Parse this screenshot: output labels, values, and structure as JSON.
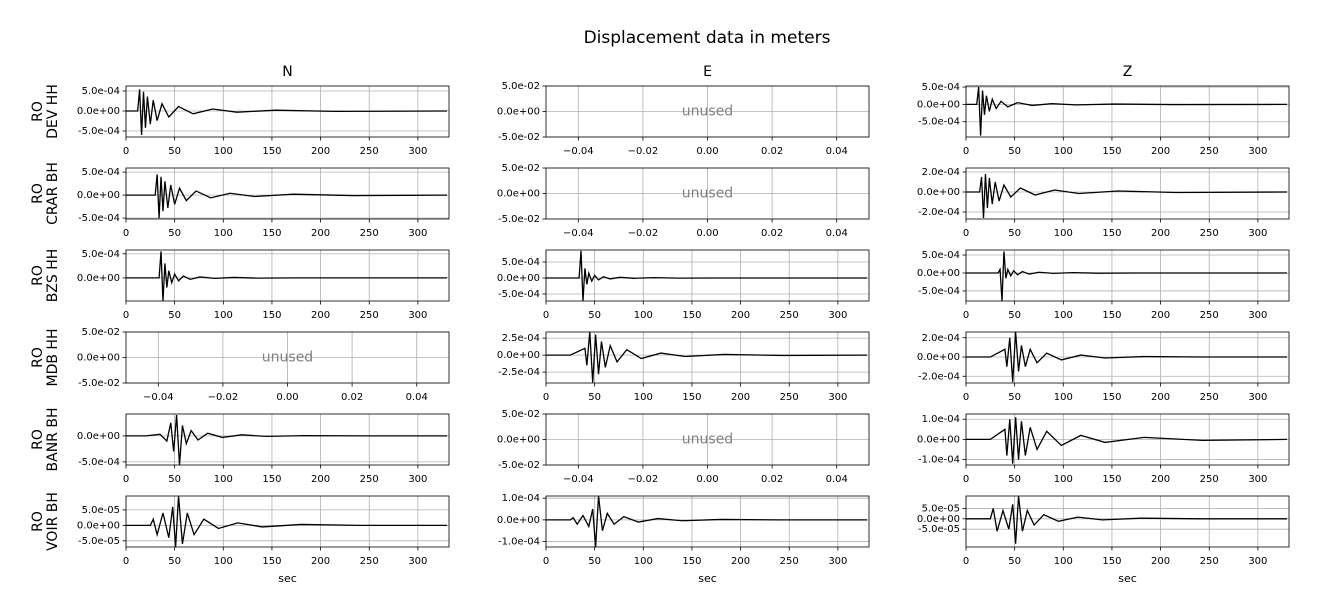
{
  "title": "Displacement data in meters",
  "chart_data": [
    {
      "type": "line",
      "title": "N",
      "ylabel": [
        "RO",
        "DEV HH"
      ],
      "xlim": [
        0,
        332
      ],
      "xticks": [
        0,
        50,
        100,
        150,
        200,
        250,
        300
      ],
      "ylim": [
        -0.00065,
        0.000625
      ],
      "yticks": [
        {
          "value": 0.0005,
          "label": "5.0e-04"
        },
        {
          "value": 0,
          "label": "0.0e+00"
        },
        {
          "value": -0.0005,
          "label": "-5.0e-04"
        }
      ],
      "grid": true,
      "color": "#000000",
      "x": [
        0,
        12,
        14,
        16,
        18,
        20,
        22,
        25,
        28,
        32,
        37,
        44,
        54,
        69,
        89,
        114,
        154,
        214,
        330
      ],
      "values": [
        0,
        0,
        0.00054,
        -0.0006,
        0.00048,
        -0.00042,
        0.00036,
        -0.00033,
        0.00027,
        -0.00024,
        0.00018,
        -0.00015,
        0.00011,
        -7e-05,
        5e-05,
        -3e-05,
        2e-05,
        -1e-05,
        0
      ]
    },
    {
      "type": "unused",
      "title": "E",
      "annotation": "unused",
      "xlim": [
        -0.05,
        0.05
      ],
      "xticks": [
        {
          "value": -0.04,
          "label": "−0.04"
        },
        {
          "value": -0.02,
          "label": "−0.02"
        },
        {
          "value": 0,
          "label": "0.00"
        },
        {
          "value": 0.02,
          "label": "0.02"
        },
        {
          "value": 0.04,
          "label": "0.04"
        }
      ],
      "ylim": [
        -0.05,
        0.05
      ],
      "yticks": [
        {
          "value": 0.05,
          "label": "5.0e-02"
        },
        {
          "value": 0,
          "label": "0.0e+00"
        },
        {
          "value": -0.05,
          "label": "-5.0e-02"
        }
      ],
      "grid": true
    },
    {
      "type": "line",
      "title": "Z",
      "xlim": [
        0,
        332
      ],
      "xticks": [
        0,
        50,
        100,
        150,
        200,
        250,
        300
      ],
      "ylim": [
        -0.00094,
        0.00053
      ],
      "yticks": [
        {
          "value": 0.0005,
          "label": "5.0e-04"
        },
        {
          "value": 0,
          "label": "0.0e+00"
        },
        {
          "value": -0.0005,
          "label": "-5.0e-04"
        }
      ],
      "grid": true,
      "color": "#000000",
      "x": [
        0,
        11,
        13,
        15,
        17,
        19,
        21,
        24,
        27,
        31,
        36,
        43,
        53,
        68,
        88,
        113,
        153,
        213,
        330
      ],
      "values": [
        0,
        0,
        0.0005,
        -0.0009,
        0.0004,
        -0.0003,
        0.00025,
        -0.0002,
        0.00015,
        -0.00012,
        9e-05,
        -7e-05,
        5e-05,
        -3e-05,
        2e-05,
        -1.5e-05,
        1e-05,
        -5e-06,
        0
      ]
    },
    {
      "type": "line",
      "ylabel": [
        "RO",
        "CRAR BH"
      ],
      "xlim": [
        0,
        332
      ],
      "xticks": [
        0,
        50,
        100,
        150,
        200,
        250,
        300
      ],
      "ylim": [
        -0.00052,
        0.00059
      ],
      "yticks": [
        {
          "value": 0.0005,
          "label": "5.0e-04"
        },
        {
          "value": 0,
          "label": "0.0e+00"
        },
        {
          "value": -0.0005,
          "label": "-5.0e-04"
        }
      ],
      "grid": true,
      "color": "#000000",
      "x": [
        0,
        30,
        32,
        34,
        36,
        38,
        40,
        43,
        46,
        50,
        55,
        62,
        72,
        87,
        107,
        132,
        172,
        232,
        330
      ],
      "values": [
        0,
        0,
        0.00045,
        -0.0005,
        0.0004,
        -0.00035,
        0.0003,
        -0.00028,
        0.00022,
        -0.0002,
        0.00015,
        -0.00012,
        9e-05,
        -6e-05,
        4e-05,
        -3e-05,
        2e-05,
        -1e-05,
        0
      ]
    },
    {
      "type": "unused",
      "annotation": "unused",
      "xlim": [
        -0.05,
        0.05
      ],
      "xticks": [
        {
          "value": -0.04,
          "label": "−0.04"
        },
        {
          "value": -0.02,
          "label": "−0.02"
        },
        {
          "value": 0,
          "label": "0.00"
        },
        {
          "value": 0.02,
          "label": "0.02"
        },
        {
          "value": 0.04,
          "label": "0.04"
        }
      ],
      "ylim": [
        -0.05,
        0.05
      ],
      "yticks": [
        {
          "value": 0.05,
          "label": "5.0e-02"
        },
        {
          "value": 0,
          "label": "0.0e+00"
        },
        {
          "value": -0.05,
          "label": "-5.0e-02"
        }
      ],
      "grid": true
    },
    {
      "type": "line",
      "xlim": [
        0,
        332
      ],
      "xticks": [
        0,
        50,
        100,
        150,
        200,
        250,
        300
      ],
      "ylim": [
        -0.00027,
        0.00024
      ],
      "yticks": [
        {
          "value": 0.0002,
          "label": "2.0e-04"
        },
        {
          "value": 0,
          "label": "0.0e+00"
        },
        {
          "value": -0.0002,
          "label": "-2.0e-04"
        }
      ],
      "grid": true,
      "color": "#000000",
      "x": [
        0,
        14,
        16,
        18,
        20,
        22,
        24,
        27,
        30,
        34,
        39,
        46,
        56,
        71,
        91,
        116,
        156,
        216,
        330
      ],
      "values": [
        0,
        0,
        0.00015,
        -0.00026,
        0.00018,
        -0.00016,
        0.00014,
        -0.00012,
        0.0001,
        -9e-05,
        7e-05,
        -5e-05,
        4e-05,
        -3e-05,
        2e-05,
        -1.5e-05,
        1e-05,
        -5e-06,
        0
      ]
    },
    {
      "type": "line",
      "ylabel": [
        "RO",
        "BZS HH"
      ],
      "xlim": [
        0,
        332
      ],
      "xticks": [
        0,
        50,
        100,
        150,
        200,
        250,
        300
      ],
      "ylim": [
        -0.00048,
        0.00058
      ],
      "yticks": [
        {
          "value": 0.0005,
          "label": "5.0e-04"
        },
        {
          "value": 0,
          "label": "0.0e+00"
        }
      ],
      "grid": true,
      "color": "#000000",
      "x": [
        0,
        34,
        36,
        38,
        40,
        42,
        44,
        47,
        50,
        54,
        59,
        66,
        76,
        91,
        111,
        136,
        176,
        236,
        330
      ],
      "values": [
        0,
        0,
        0.00055,
        -0.00048,
        0.0003,
        -0.0002,
        0.00015,
        -0.0001,
        8e-05,
        -6e-05,
        4e-05,
        -3e-05,
        2e-05,
        -1e-05,
        1e-05,
        -5e-06,
        0,
        0,
        0
      ]
    },
    {
      "type": "line",
      "xlim": [
        0,
        332
      ],
      "xticks": [
        0,
        50,
        100,
        150,
        200,
        250,
        300
      ],
      "ylim": [
        -0.00072,
        0.000875
      ],
      "yticks": [
        {
          "value": 0.0005,
          "label": "5.0e-04"
        },
        {
          "value": 0,
          "label": "0.0e+00"
        },
        {
          "value": -0.0005,
          "label": "-5.0e-04"
        }
      ],
      "grid": true,
      "color": "#000000",
      "x": [
        0,
        34,
        36,
        38,
        40,
        42,
        44,
        47,
        50,
        54,
        59,
        66,
        76,
        91,
        111,
        136,
        176,
        236,
        330
      ],
      "values": [
        0,
        0,
        0.00085,
        -0.00072,
        0.0003,
        -0.0002,
        0.00015,
        -0.0001,
        8e-05,
        -6e-05,
        4e-05,
        -3e-05,
        2e-05,
        -1e-05,
        1e-05,
        -5e-06,
        0,
        0,
        0
      ]
    },
    {
      "type": "line",
      "xlim": [
        0,
        332
      ],
      "xticks": [
        0,
        50,
        100,
        150,
        200,
        250,
        300
      ],
      "ylim": [
        -0.00078,
        0.00064
      ],
      "yticks": [
        {
          "value": 0.0005,
          "label": "5.0e-04"
        },
        {
          "value": 0,
          "label": "0.0e+00"
        },
        {
          "value": -0.0005,
          "label": "-5.0e-04"
        }
      ],
      "grid": true,
      "color": "#000000",
      "x": [
        0,
        33,
        35,
        37,
        39,
        41,
        43,
        46,
        49,
        53,
        58,
        65,
        75,
        90,
        110,
        135,
        175,
        235,
        330
      ],
      "values": [
        0,
        0,
        0.0001,
        -0.00078,
        0.0006,
        -0.00015,
        0.0001,
        -8e-05,
        6e-05,
        -5e-05,
        4e-05,
        -3e-05,
        2e-05,
        -1e-05,
        1e-05,
        -5e-06,
        0,
        0,
        0
      ]
    },
    {
      "type": "unused",
      "ylabel": [
        "RO",
        "MDB HH"
      ],
      "annotation": "unused",
      "xlim": [
        -0.05,
        0.05
      ],
      "xticks": [
        {
          "value": -0.04,
          "label": "−0.04"
        },
        {
          "value": -0.02,
          "label": "−0.02"
        },
        {
          "value": 0,
          "label": "0.00"
        },
        {
          "value": 0.02,
          "label": "0.02"
        },
        {
          "value": 0.04,
          "label": "0.04"
        }
      ],
      "ylim": [
        -0.05,
        0.05
      ],
      "yticks": [
        {
          "value": 0.05,
          "label": "5.0e-02"
        },
        {
          "value": 0,
          "label": "0.0e+00"
        },
        {
          "value": -0.05,
          "label": "-5.0e-02"
        }
      ],
      "grid": true
    },
    {
      "type": "line",
      "xlim": [
        0,
        332
      ],
      "xticks": [
        0,
        50,
        100,
        150,
        200,
        250,
        300
      ],
      "ylim": [
        -0.00041,
        0.00034
      ],
      "yticks": [
        {
          "value": 0.00025,
          "label": "2.5e-04"
        },
        {
          "value": 0,
          "label": "0.0e+00"
        },
        {
          "value": -0.00025,
          "label": "-2.5e-04"
        }
      ],
      "grid": true,
      "color": "#000000",
      "x": [
        0,
        25,
        40,
        42,
        45,
        48,
        51,
        54,
        57,
        61,
        66,
        73,
        83,
        98,
        118,
        143,
        183,
        243,
        330
      ],
      "values": [
        0,
        0,
        0.0001,
        -0.00015,
        0.00034,
        -0.0004,
        0.0003,
        -0.00028,
        0.0002,
        -0.00018,
        0.00014,
        -0.0001,
        8e-05,
        -5e-05,
        3e-05,
        -2e-05,
        1e-05,
        -5e-06,
        0
      ]
    },
    {
      "type": "line",
      "xlim": [
        0,
        332
      ],
      "xticks": [
        0,
        50,
        100,
        150,
        200,
        250,
        300
      ],
      "ylim": [
        -0.00027,
        0.00026
      ],
      "yticks": [
        {
          "value": 0.0002,
          "label": "2.0e-04"
        },
        {
          "value": 0,
          "label": "0.0e+00"
        },
        {
          "value": -0.0002,
          "label": "-2.0e-04"
        }
      ],
      "grid": true,
      "color": "#000000",
      "x": [
        0,
        25,
        40,
        42,
        45,
        48,
        51,
        54,
        57,
        61,
        66,
        73,
        83,
        98,
        118,
        143,
        183,
        243,
        330
      ],
      "values": [
        0,
        0,
        8e-05,
        -0.0001,
        0.0002,
        -0.00026,
        0.00026,
        -0.00015,
        0.00012,
        -0.0001,
        8e-05,
        -6e-05,
        4e-05,
        -3e-05,
        2e-05,
        -1e-05,
        5e-06,
        0,
        0
      ]
    },
    {
      "type": "line",
      "ylabel": [
        "RO",
        "BANR BH"
      ],
      "xlim": [
        0,
        332
      ],
      "xticks": [
        0,
        50,
        100,
        150,
        200,
        250,
        300
      ],
      "ylim": [
        -0.00056,
        0.00042
      ],
      "yticks": [
        {
          "value": 0,
          "label": "0.0e+00"
        },
        {
          "value": -0.0005,
          "label": "-5.0e-04"
        }
      ],
      "grid": true,
      "color": "#000000",
      "x": [
        0,
        20,
        35,
        42,
        46,
        49,
        52,
        55,
        58,
        62,
        67,
        74,
        84,
        99,
        119,
        144,
        184,
        244,
        330
      ],
      "values": [
        0,
        0,
        3e-05,
        -0.0001,
        0.00025,
        -0.0003,
        0.0004,
        -0.00056,
        0.0002,
        -0.00015,
        0.0001,
        -8e-05,
        5e-05,
        -3e-05,
        2e-05,
        -1e-05,
        5e-06,
        0,
        0
      ]
    },
    {
      "type": "unused",
      "annotation": "unused",
      "xlim": [
        -0.05,
        0.05
      ],
      "xticks": [
        {
          "value": -0.04,
          "label": "−0.04"
        },
        {
          "value": -0.02,
          "label": "−0.02"
        },
        {
          "value": 0,
          "label": "0.00"
        },
        {
          "value": 0.02,
          "label": "0.02"
        },
        {
          "value": 0.04,
          "label": "0.04"
        }
      ],
      "ylim": [
        -0.05,
        0.05
      ],
      "yticks": [
        {
          "value": 0.05,
          "label": "5.0e-02"
        },
        {
          "value": 0,
          "label": "0.0e+00"
        },
        {
          "value": -0.05,
          "label": "-5.0e-02"
        }
      ],
      "grid": true
    },
    {
      "type": "line",
      "xlim": [
        0,
        332
      ],
      "xticks": [
        0,
        50,
        100,
        150,
        200,
        250,
        300
      ],
      "ylim": [
        -0.000127,
        0.000126
      ],
      "yticks": [
        {
          "value": 0.0001,
          "label": "1.0e-04"
        },
        {
          "value": 0,
          "label": "0.0e+00"
        },
        {
          "value": -0.0001,
          "label": "-1.0e-04"
        }
      ],
      "grid": true,
      "color": "#000000",
      "x": [
        0,
        25,
        40,
        42,
        45,
        48,
        51,
        54,
        57,
        61,
        66,
        73,
        83,
        98,
        118,
        143,
        183,
        243,
        330
      ],
      "values": [
        0,
        0,
        5e-05,
        -8e-05,
        0.0001,
        -0.00012,
        0.00011,
        -0.0001,
        9e-05,
        -8e-05,
        6e-05,
        -5e-05,
        4e-05,
        -3e-05,
        2e-05,
        -1.5e-05,
        1e-05,
        -5e-06,
        0
      ]
    },
    {
      "type": "line",
      "ylabel": [
        "RO",
        "VOIR BH"
      ],
      "xlabel": "sec",
      "xlim": [
        0,
        332
      ],
      "xticks": [
        0,
        50,
        100,
        150,
        200,
        250,
        300
      ],
      "ylim": [
        -7e-05,
        9.5e-05
      ],
      "yticks": [
        {
          "value": 5e-05,
          "label": "5.0e-05"
        },
        {
          "value": 0,
          "label": "0.0e+00"
        },
        {
          "value": -5e-05,
          "label": "-5.0e-05"
        }
      ],
      "grid": true,
      "color": "#000000",
      "x": [
        0,
        25,
        28,
        32,
        38,
        44,
        48,
        51,
        54,
        58,
        63,
        70,
        80,
        95,
        115,
        140,
        180,
        240,
        330
      ],
      "values": [
        0,
        0,
        2e-05,
        -3e-05,
        4e-05,
        -4e-05,
        6e-05,
        -7e-05,
        9.5e-05,
        -6e-05,
        4e-05,
        -3e-05,
        2e-05,
        -1e-05,
        8e-06,
        -5e-06,
        3e-06,
        0,
        0
      ]
    },
    {
      "type": "line",
      "xlabel": "sec",
      "xlim": [
        0,
        332
      ],
      "xticks": [
        0,
        50,
        100,
        150,
        200,
        250,
        300
      ],
      "ylim": [
        -0.000125,
        0.00011
      ],
      "yticks": [
        {
          "value": 0.0001,
          "label": "1.0e-04"
        },
        {
          "value": 0,
          "label": "0.0e+00"
        },
        {
          "value": -0.0001,
          "label": "-1.0e-04"
        }
      ],
      "grid": true,
      "color": "#000000",
      "x": [
        0,
        25,
        28,
        32,
        38,
        44,
        48,
        51,
        54,
        58,
        63,
        70,
        80,
        95,
        115,
        140,
        180,
        240,
        330
      ],
      "values": [
        0,
        0,
        1e-05,
        -2e-05,
        2e-05,
        -3e-05,
        5e-05,
        -0.000125,
        0.00011,
        -5e-05,
        3e-05,
        -2e-05,
        1.5e-05,
        -1e-05,
        6e-06,
        -4e-06,
        2e-06,
        0,
        0
      ]
    },
    {
      "type": "line",
      "xlabel": "sec",
      "xlim": [
        0,
        332
      ],
      "xticks": [
        0,
        50,
        100,
        150,
        200,
        250,
        300
      ],
      "ylim": [
        -0.000136,
        0.00011
      ],
      "yticks": [
        {
          "value": 5e-05,
          "label": "5.0e-05"
        },
        {
          "value": 0,
          "label": "0.0e+00"
        },
        {
          "value": -5e-05,
          "label": "-5.0e-05"
        }
      ],
      "grid": true,
      "color": "#000000",
      "x": [
        0,
        25,
        28,
        32,
        38,
        44,
        48,
        51,
        54,
        58,
        63,
        70,
        80,
        95,
        115,
        140,
        180,
        240,
        330
      ],
      "values": [
        0,
        0,
        5e-05,
        -6e-05,
        4e-05,
        -5e-05,
        7e-05,
        -0.00012,
        0.00011,
        -6e-05,
        4e-05,
        -3e-05,
        2e-05,
        -1.2e-05,
        8e-06,
        -5e-06,
        3e-06,
        0,
        0
      ]
    }
  ]
}
